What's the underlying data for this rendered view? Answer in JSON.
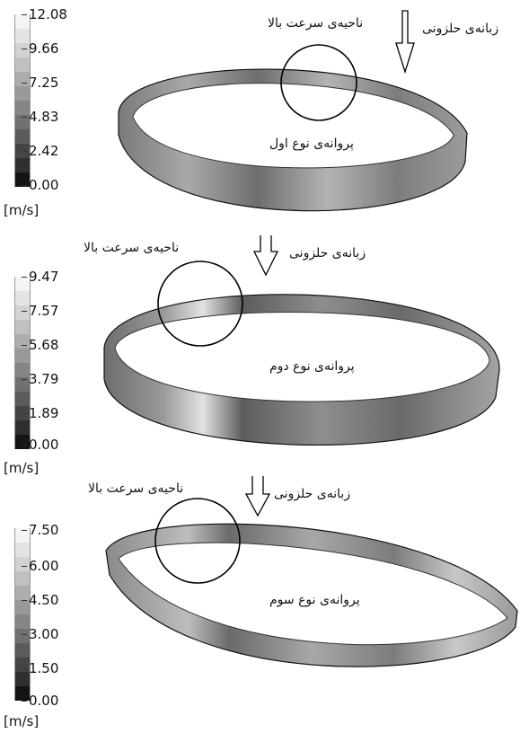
{
  "unit": "[m/s]",
  "panels": [
    {
      "ticks": [
        "12.08",
        "9.66",
        "7.25",
        "4.83",
        "2.42",
        "0.00"
      ],
      "high_speed_label": "ناحیه‌ی سرعت بالا",
      "tongue_label": "زبانه‌ی حلزونی",
      "impeller_label": "پروانه‌ی نوع اول"
    },
    {
      "ticks": [
        "9.47",
        "7.57",
        "5.68",
        "3.79",
        "1.89",
        "0.00"
      ],
      "high_speed_label": "ناحیه‌ی سرعت بالا",
      "tongue_label": "زبانه‌ی حلزونی",
      "impeller_label": "پروانه‌ی نوع دوم"
    },
    {
      "ticks": [
        "7.50",
        "6.00",
        "4.50",
        "3.00",
        "1.50",
        "0.00"
      ],
      "high_speed_label": "ناحیه‌ی سرعت بالا",
      "tongue_label": "زبانه‌ی حلزونی",
      "impeller_label": "پروانه‌ی نوع سوم"
    }
  ],
  "colors": {
    "band_gray": "#8a8a8a",
    "band_dark": "#4a4a4a",
    "band_light": "#cfcfcf",
    "outline": "#111111",
    "colorbar_steps": [
      "#f4f4f4",
      "#e3e3e3",
      "#d2d2d2",
      "#c0c0c0",
      "#adadad",
      "#999999",
      "#858585",
      "#707070",
      "#5b5b5b",
      "#454545",
      "#2f2f2f",
      "#141414"
    ]
  }
}
